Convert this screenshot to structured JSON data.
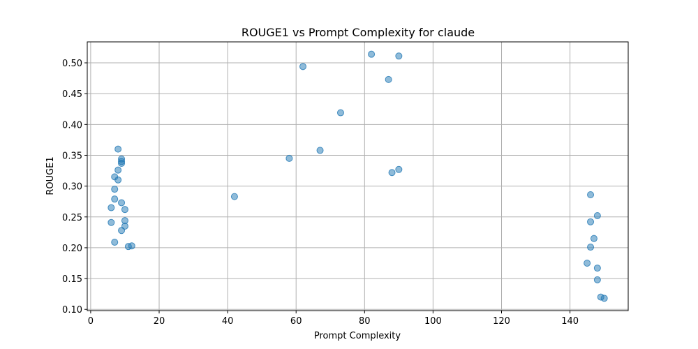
{
  "chart_data": {
    "type": "scatter",
    "title": "ROUGE1 vs Prompt Complexity for claude",
    "xlabel": "Prompt Complexity",
    "ylabel": "ROUGE1",
    "xlim": [
      -1,
      157
    ],
    "ylim": [
      0.098,
      0.534
    ],
    "xticks": [
      0,
      20,
      40,
      60,
      80,
      100,
      120,
      140
    ],
    "yticks": [
      0.1,
      0.15,
      0.2,
      0.25,
      0.3,
      0.35,
      0.4,
      0.45,
      0.5
    ],
    "grid": true,
    "point_color": "#1f77b4",
    "point_alpha": 0.5,
    "points": [
      {
        "x": 8,
        "y": 0.36
      },
      {
        "x": 9,
        "y": 0.344
      },
      {
        "x": 9,
        "y": 0.34
      },
      {
        "x": 9,
        "y": 0.337
      },
      {
        "x": 8,
        "y": 0.326
      },
      {
        "x": 7,
        "y": 0.315
      },
      {
        "x": 8,
        "y": 0.31
      },
      {
        "x": 7,
        "y": 0.295
      },
      {
        "x": 7,
        "y": 0.279
      },
      {
        "x": 9,
        "y": 0.273
      },
      {
        "x": 6,
        "y": 0.265
      },
      {
        "x": 10,
        "y": 0.262
      },
      {
        "x": 10,
        "y": 0.244
      },
      {
        "x": 6,
        "y": 0.241
      },
      {
        "x": 10,
        "y": 0.235
      },
      {
        "x": 9,
        "y": 0.228
      },
      {
        "x": 7,
        "y": 0.209
      },
      {
        "x": 11,
        "y": 0.202
      },
      {
        "x": 12,
        "y": 0.203
      },
      {
        "x": 42,
        "y": 0.283
      },
      {
        "x": 58,
        "y": 0.345
      },
      {
        "x": 62,
        "y": 0.494
      },
      {
        "x": 67,
        "y": 0.358
      },
      {
        "x": 73,
        "y": 0.419
      },
      {
        "x": 82,
        "y": 0.514
      },
      {
        "x": 87,
        "y": 0.473
      },
      {
        "x": 88,
        "y": 0.322
      },
      {
        "x": 90,
        "y": 0.511
      },
      {
        "x": 90,
        "y": 0.327
      },
      {
        "x": 146,
        "y": 0.286
      },
      {
        "x": 148,
        "y": 0.252
      },
      {
        "x": 146,
        "y": 0.242
      },
      {
        "x": 147,
        "y": 0.215
      },
      {
        "x": 146,
        "y": 0.201
      },
      {
        "x": 145,
        "y": 0.175
      },
      {
        "x": 148,
        "y": 0.167
      },
      {
        "x": 148,
        "y": 0.148
      },
      {
        "x": 149,
        "y": 0.12
      },
      {
        "x": 150,
        "y": 0.118
      }
    ]
  }
}
